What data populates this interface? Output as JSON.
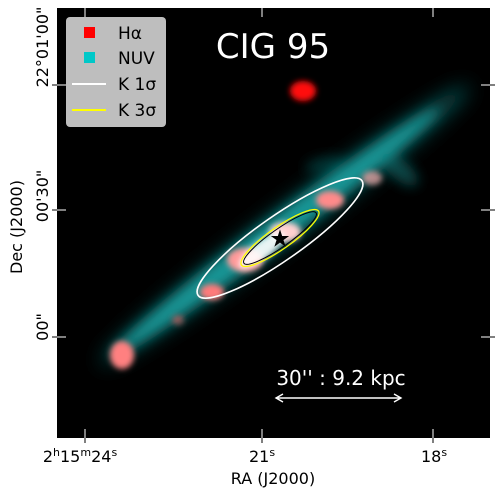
{
  "figure": {
    "title": "CIG 95",
    "scale_bar_label": "30'' : 9.2 kpc",
    "xlabel": "RA (J2000)",
    "ylabel": "Dec (J2000)",
    "x_ticks": {
      "t1_base": "2",
      "t1_h": "h",
      "t1_num": "15",
      "t1_m": "m",
      "t1_num2": "24",
      "t1_s": "s",
      "t2_num": "21",
      "t2_s": "s",
      "t3_num": "18",
      "t3_s": "s"
    },
    "y_ticks": {
      "t1": "22°01'00\"",
      "t2": "00'30\"",
      "t3": "00\""
    },
    "legend": [
      {
        "label": "Hα",
        "color": "#ff0000",
        "marker": "square"
      },
      {
        "label": "NUV",
        "color": "#00c8c8",
        "marker": "square"
      },
      {
        "label": "K 1σ",
        "color": "#ffffff",
        "marker": "line"
      },
      {
        "label": "K 3σ",
        "color": "#ffff00",
        "marker": "line"
      }
    ],
    "colors": {
      "background": "#000000",
      "halpha": "#ff0000",
      "nuv": "#00c8c8",
      "k1": "#ffffff",
      "k3": "#ffff00",
      "legend_bg": "#c8c8c8"
    },
    "star_icon": "star-icon"
  }
}
